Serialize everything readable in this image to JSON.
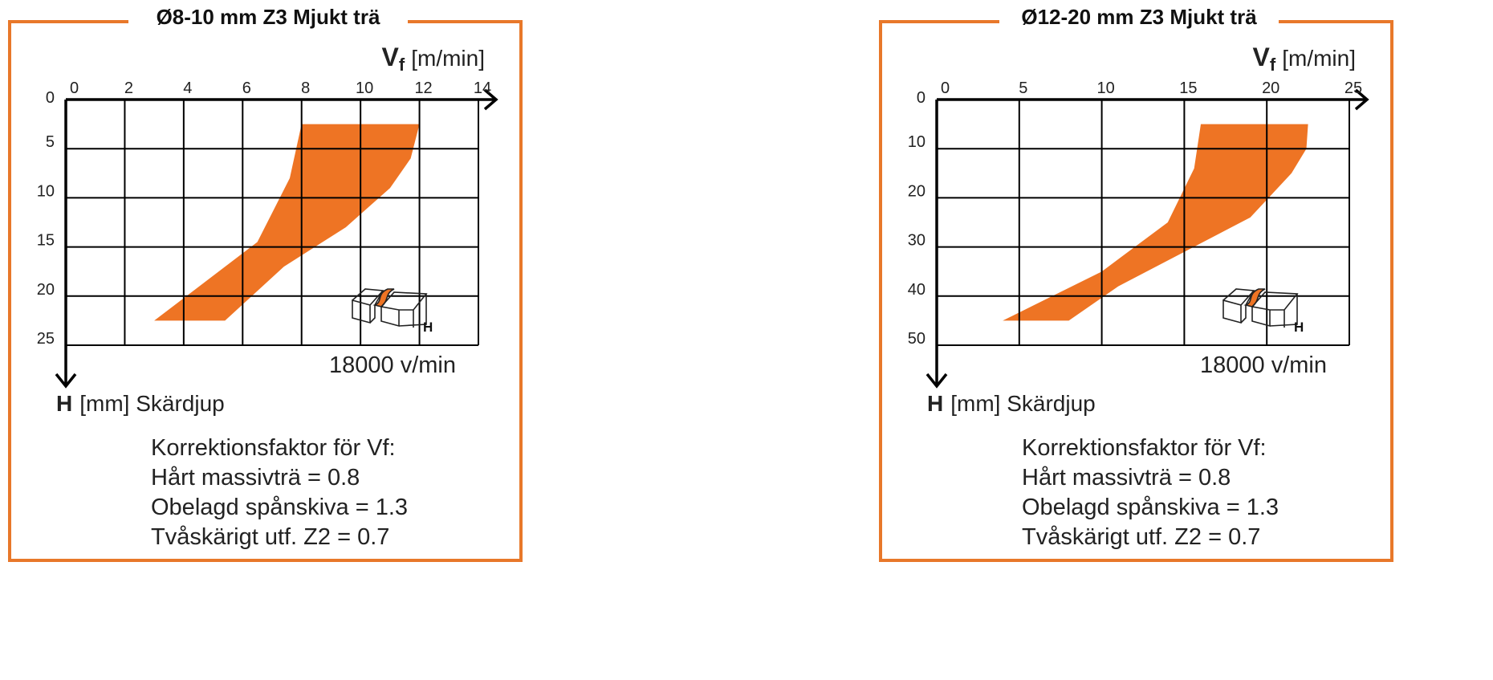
{
  "colors": {
    "frame": "#E8782A",
    "fill": "#EE7424",
    "line": "#000000",
    "text": "#222222"
  },
  "chart_data": [
    {
      "type": "area",
      "title": "Ø8-10 mm Z3 Mjukt trä",
      "xlabel_main": "V",
      "xlabel_sub": "f",
      "xlabel_unit": "[m/min]",
      "ylabel_main": "H",
      "ylabel_rest": "[mm] Skärdjup",
      "x_ticks": [
        "0",
        "2",
        "4",
        "6",
        "8",
        "10",
        "12",
        "14"
      ],
      "y_ticks": [
        "0",
        "5",
        "10",
        "15",
        "20",
        "25"
      ],
      "xlim": [
        0,
        14
      ],
      "ylim": [
        0,
        25
      ],
      "y_inverted": true,
      "x_axis_position": "top",
      "grid": true,
      "speed_note": "18000 v/min",
      "region": {
        "name": "",
        "polygon": [
          [
            8,
            2.5
          ],
          [
            12,
            2.5
          ],
          [
            11.7,
            6
          ],
          [
            11,
            9
          ],
          [
            9.5,
            13
          ],
          [
            7.4,
            17
          ],
          [
            5.4,
            22.5
          ],
          [
            3,
            22.5
          ],
          [
            6.5,
            14.5
          ],
          [
            7.6,
            8
          ],
          [
            8,
            2.5
          ]
        ]
      },
      "correction": {
        "heading": "Korrektionsfaktor för Vf:",
        "lines": [
          "Hårt massivträ = 0.8",
          "Obelagd spånskiva = 1.3",
          "Tvåskärigt utf. Z2 = 0.7"
        ]
      },
      "icon": "wood-joint-icon",
      "icon_label": "H"
    },
    {
      "type": "area",
      "title": "Ø12-20 mm Z3 Mjukt trä",
      "xlabel_main": "V",
      "xlabel_sub": "f",
      "xlabel_unit": "[m/min]",
      "ylabel_main": "H",
      "ylabel_rest": "[mm] Skärdjup",
      "x_ticks": [
        "0",
        "5",
        "10",
        "15",
        "20",
        "25"
      ],
      "y_ticks": [
        "0",
        "10",
        "20",
        "30",
        "40",
        "50"
      ],
      "xlim": [
        0,
        25
      ],
      "ylim": [
        0,
        50
      ],
      "y_inverted": true,
      "x_axis_position": "top",
      "grid": true,
      "speed_note": "18000 v/min",
      "region": {
        "name": "",
        "polygon": [
          [
            16,
            5
          ],
          [
            22.5,
            5
          ],
          [
            22.4,
            10
          ],
          [
            21.5,
            15
          ],
          [
            19,
            24
          ],
          [
            15,
            31
          ],
          [
            11,
            38
          ],
          [
            8,
            45
          ],
          [
            4,
            45
          ],
          [
            10,
            35
          ],
          [
            14,
            25
          ],
          [
            15.6,
            14
          ],
          [
            16,
            5
          ]
        ]
      },
      "correction": {
        "heading": "Korrektionsfaktor för Vf:",
        "lines": [
          "Hårt massivträ = 0.8",
          "Obelagd spånskiva = 1.3",
          "Tvåskärigt utf. Z2 = 0.7"
        ]
      },
      "icon": "wood-joint-icon",
      "icon_label": "H"
    }
  ]
}
